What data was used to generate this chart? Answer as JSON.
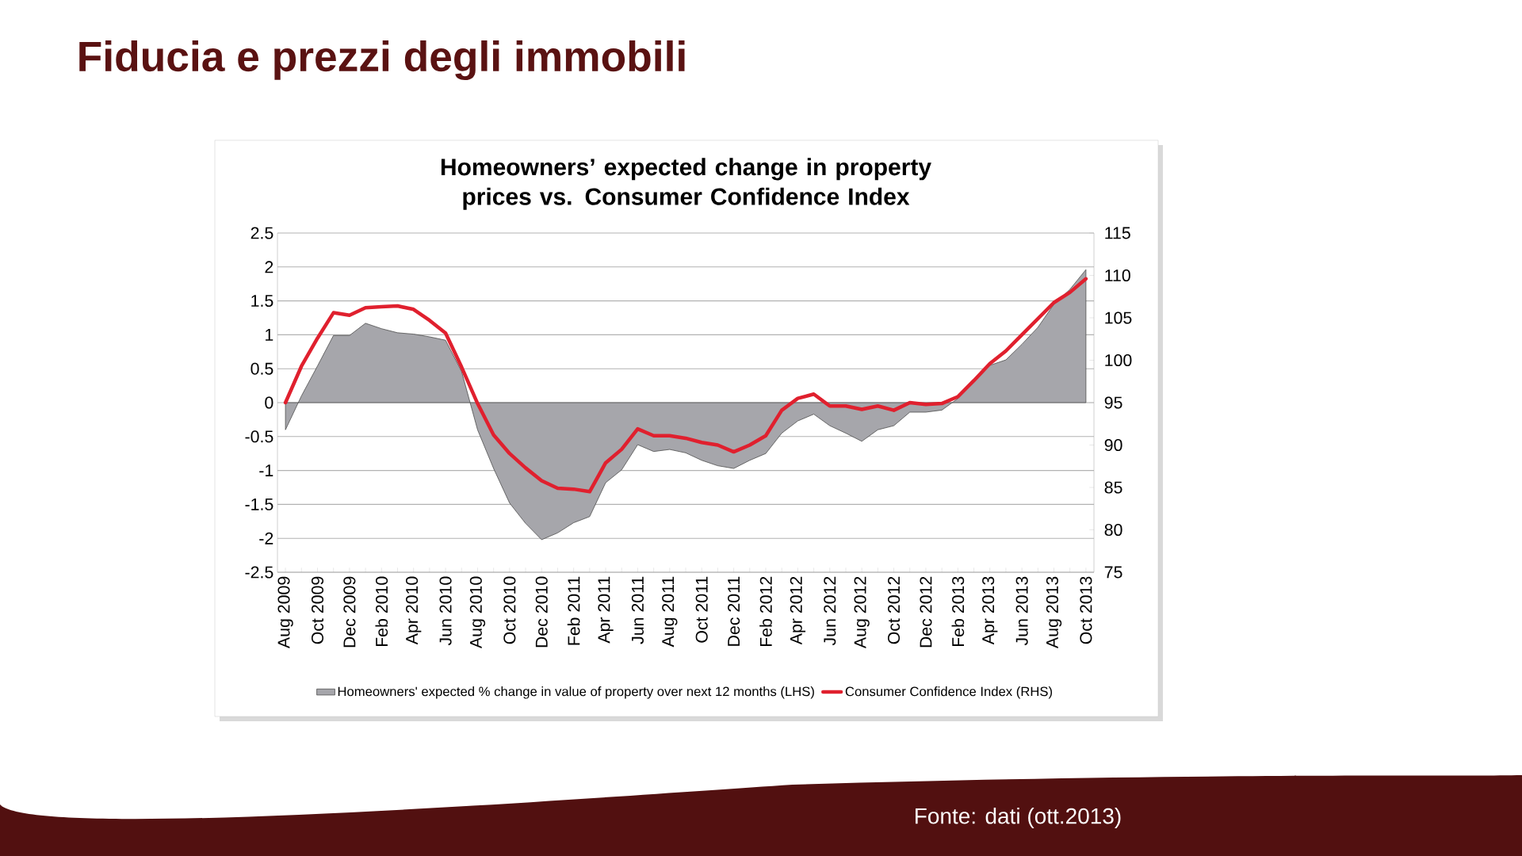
{
  "chart_data": {
    "type": "area",
    "title": "Fiducia e prezzi degli immobili",
    "subtitle": "Homeowners’ expected change in property prices vs. Consumer Confidence Index",
    "annotations": [
      "Fonte: dati (ott.2013)"
    ],
    "categories": [
      "Aug 2009",
      null,
      "Oct 2009",
      null,
      "Dec 2009",
      null,
      "Feb 2010",
      null,
      "Apr 2010",
      null,
      "Jun 2010",
      null,
      "Aug 2010",
      null,
      "Oct 2010",
      null,
      "Dec 2010",
      null,
      "Feb 2011",
      null,
      "Apr 2011",
      null,
      "Jun 2011",
      null,
      "Aug 2011",
      null,
      "Oct 2011",
      null,
      "Dec 2011",
      null,
      "Feb 2012",
      null,
      "Apr 2012",
      null,
      "Jun 2012",
      null,
      "Aug 2012",
      null,
      "Oct 2012",
      null,
      "Dec 2012",
      null,
      "Feb 2013",
      null,
      "Apr 2013",
      null,
      "Jun 2013",
      null,
      "Aug 2013",
      null,
      "Oct 2013"
    ],
    "series": [
      {
        "name": "Homeowners' expected % change in value of property over next 12 months (LHS)",
        "color": "#a6a6ab",
        "values": [
          -0.4,
          0.1,
          0.54,
          0.99,
          0.99,
          1.17,
          1.09,
          1.03,
          1.01,
          0.97,
          0.92,
          0.46,
          -0.4,
          -0.97,
          -1.48,
          -1.78,
          -2.02,
          -1.92,
          -1.77,
          -1.68,
          -1.18,
          -0.99,
          -0.62,
          -0.72,
          -0.69,
          -0.74,
          -0.85,
          -0.93,
          -0.97,
          -0.85,
          -0.75,
          -0.45,
          -0.27,
          -0.17,
          -0.34,
          -0.45,
          -0.57,
          -0.4,
          -0.34,
          -0.14,
          -0.14,
          -0.11,
          0.06,
          0.3,
          0.55,
          0.63,
          0.86,
          1.11,
          1.45,
          1.67,
          1.96
        ]
      },
      {
        "name": "Consumer Confidence Index (RHS)",
        "type": "line",
        "axis": "y2",
        "color": "#e0202e",
        "values": [
          95,
          99.3,
          102.6,
          105.6,
          105.3,
          106.2,
          106.3,
          106.4,
          106.0,
          104.7,
          103.2,
          99.2,
          94.9,
          91.2,
          89.0,
          87.3,
          85.8,
          84.9,
          84.8,
          84.5,
          87.9,
          89.5,
          91.9,
          91.1,
          91.1,
          90.8,
          90.3,
          90.0,
          89.2,
          90.0,
          91.1,
          94.1,
          95.5,
          96.0,
          94.6,
          94.6,
          94.2,
          94.6,
          94.1,
          95.0,
          94.8,
          94.9,
          95.7,
          97.6,
          99.6,
          101.1,
          103.0,
          104.9,
          106.8,
          108.0,
          109.6
        ]
      }
    ],
    "ylim": [
      -2.5,
      2.5
    ],
    "yticks": [
      -2.5,
      -2,
      -1.5,
      -1,
      -0.5,
      0,
      0.5,
      1,
      1.5,
      2,
      2.5
    ],
    "y2lim": [
      75,
      115
    ],
    "y2ticks": [
      75,
      80,
      85,
      90,
      95,
      100,
      105,
      110,
      115
    ],
    "grid": "y",
    "legend": "bottom"
  }
}
